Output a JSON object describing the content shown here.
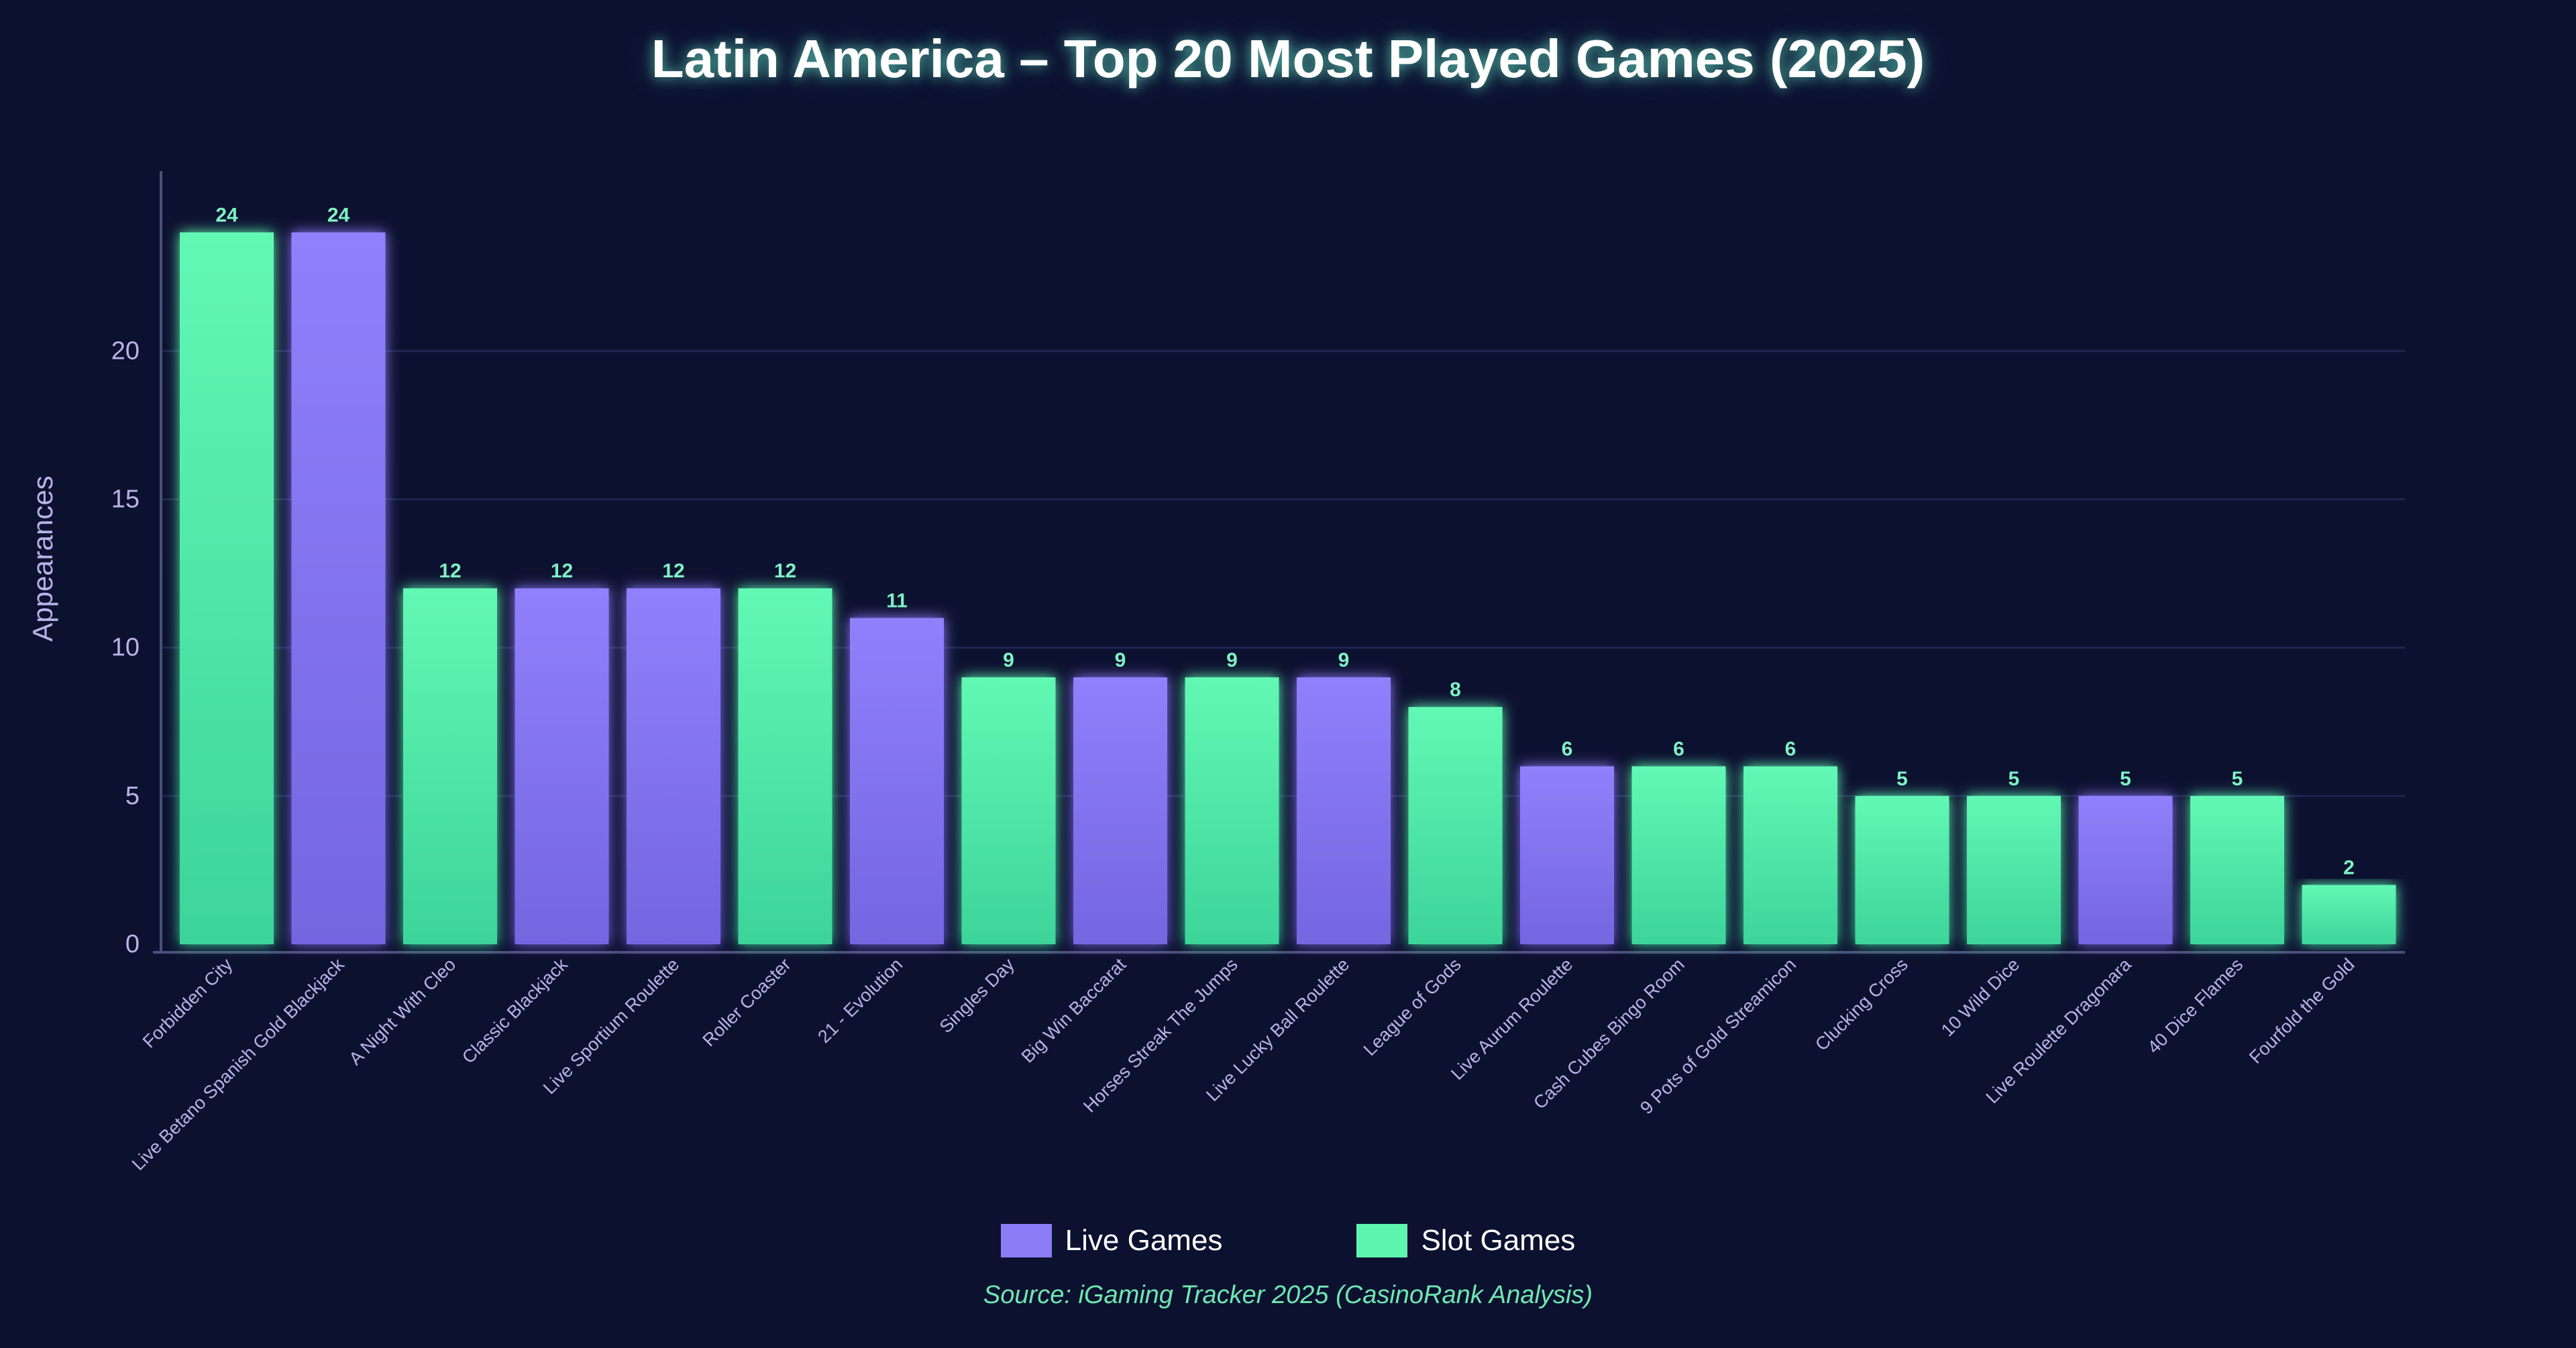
{
  "chart_data": {
    "type": "bar",
    "title": "Latin America – Top 20 Most Played Games (2025)",
    "xlabel": "",
    "ylabel": "Appearances",
    "ylim": [
      0,
      26
    ],
    "yticks": [
      0,
      5,
      10,
      15,
      20
    ],
    "grid": true,
    "categories": [
      "Forbidden City",
      "Live Betano Spanish Gold Blackjack",
      "A Night With Cleo",
      "Classic Blackjack",
      "Live Sportium Roulette",
      "Roller Coaster",
      "21 - Evolution",
      "Singles Day",
      "Big Win Baccarat",
      "Horses Streak The Jumps",
      "Live Lucky Ball Roulette",
      "League of Gods",
      "Live Aurum Roulette",
      "Cash Cubes Bingo Room",
      "9 Pots of Gold Streamicon",
      "Clucking Cross",
      "10 Wild Dice",
      "Live Roulette Dragonara",
      "40 Dice Flames",
      "Fourfold the Gold"
    ],
    "values": [
      24,
      24,
      12,
      12,
      12,
      12,
      11,
      9,
      9,
      9,
      9,
      8,
      6,
      6,
      6,
      5,
      5,
      5,
      5,
      2
    ],
    "bar_series": [
      "slot",
      "live",
      "slot",
      "live",
      "live",
      "slot",
      "live",
      "slot",
      "live",
      "slot",
      "live",
      "slot",
      "live",
      "slot",
      "slot",
      "slot",
      "slot",
      "live",
      "slot",
      "slot"
    ],
    "series": [
      {
        "key": "live",
        "name": "Live Games",
        "color": "#8b7cf6"
      },
      {
        "key": "slot",
        "name": "Slot Games",
        "color": "#5ef5b0"
      }
    ],
    "legend_position": "bottom",
    "source": "Source: iGaming Tracker 2025 (CasinoRank Analysis)"
  },
  "colors": {
    "background": "#0d1130",
    "live": "#8b7cf6",
    "slot": "#5ef5b0",
    "value_label": "#7df2c4",
    "axis_text": "#b8b4e8",
    "source_text": "#6ee8b0"
  }
}
